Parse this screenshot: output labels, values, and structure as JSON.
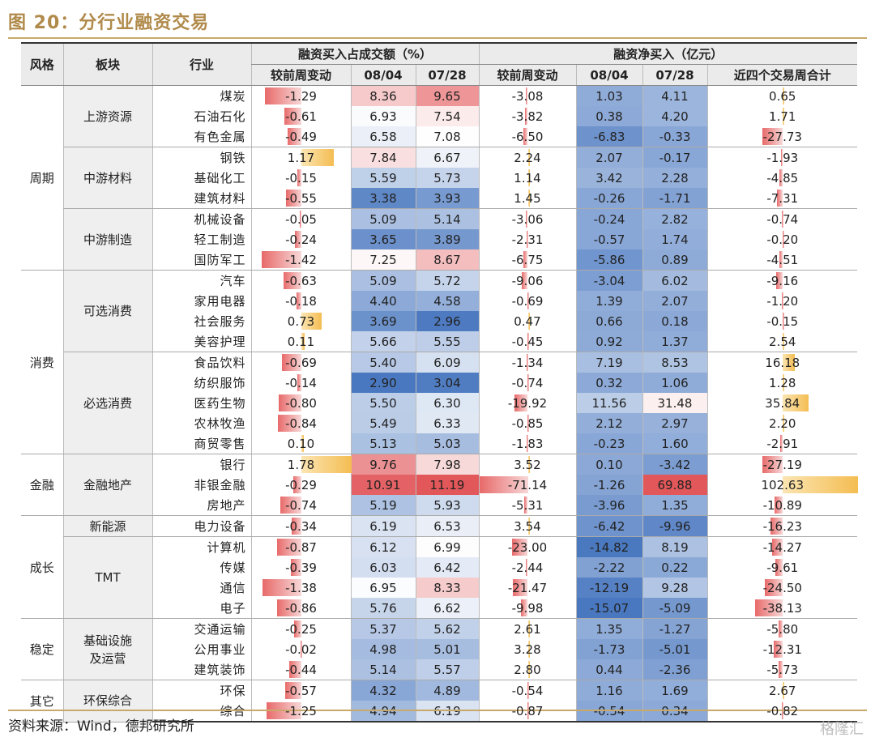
{
  "title": "图 20：分行业融资交易",
  "source": "资料来源：Wind，德邦研究所",
  "watermark": "格隆汇",
  "headers": {
    "style": "风格",
    "sector": "板块",
    "industry": "行业",
    "group1": "融资买入占成交额（%）",
    "group2": "融资净买入（亿元）",
    "wow": "较前周变动",
    "d1": "08/04",
    "d2": "07/28",
    "sum4": "近四个交易周合计"
  },
  "colors": {
    "neg_bar": "#e86a6a",
    "pos_bar": "#f4bd52",
    "heat_high": "#e2575a",
    "heat_low": "#4a78c0",
    "accent": "#b08a4a"
  },
  "rows": [
    {
      "style": "周期",
      "style_span": 9,
      "sector": "上游资源",
      "sector_span": 3,
      "industry": "煤炭",
      "a": "-1.29",
      "b": "8.36",
      "c": "9.65",
      "d": "-3.08",
      "e": "1.03",
      "f": "4.11",
      "g": "0.65"
    },
    {
      "industry": "石油石化",
      "a": "-0.61",
      "b": "6.93",
      "c": "7.54",
      "d": "-3.82",
      "e": "0.38",
      "f": "4.20",
      "g": "1.71"
    },
    {
      "industry": "有色金属",
      "a": "-0.49",
      "b": "6.58",
      "c": "7.08",
      "d": "-6.50",
      "e": "-6.83",
      "f": "-0.33",
      "g": "-27.73"
    },
    {
      "sector": "中游材料",
      "sector_span": 3,
      "industry": "钢铁",
      "a": "1.17",
      "b": "7.84",
      "c": "6.67",
      "d": "2.24",
      "e": "2.07",
      "f": "-0.17",
      "g": "-1.93"
    },
    {
      "industry": "基础化工",
      "a": "-0.15",
      "b": "5.59",
      "c": "5.73",
      "d": "1.14",
      "e": "3.42",
      "f": "2.28",
      "g": "-4.85"
    },
    {
      "industry": "建筑材料",
      "a": "-0.55",
      "b": "3.38",
      "c": "3.93",
      "d": "1.45",
      "e": "-0.26",
      "f": "-1.71",
      "g": "-7.31"
    },
    {
      "sector": "中游制造",
      "sector_span": 3,
      "industry": "机械设备",
      "a": "-0.05",
      "b": "5.09",
      "c": "5.14",
      "d": "-3.06",
      "e": "-0.24",
      "f": "2.82",
      "g": "-0.74"
    },
    {
      "industry": "轻工制造",
      "a": "-0.24",
      "b": "3.65",
      "c": "3.89",
      "d": "-2.31",
      "e": "-0.57",
      "f": "1.74",
      "g": "-0.20"
    },
    {
      "industry": "国防军工",
      "a": "-1.42",
      "b": "7.25",
      "c": "8.67",
      "d": "-6.75",
      "e": "-5.86",
      "f": "0.89",
      "g": "-4.51"
    },
    {
      "style": "消费",
      "style_span": 9,
      "sector": "可选消费",
      "sector_span": 4,
      "industry": "汽车",
      "a": "-0.63",
      "b": "5.09",
      "c": "5.72",
      "d": "-9.06",
      "e": "-3.04",
      "f": "6.02",
      "g": "-9.16"
    },
    {
      "industry": "家用电器",
      "a": "-0.18",
      "b": "4.40",
      "c": "4.58",
      "d": "-0.69",
      "e": "1.39",
      "f": "2.07",
      "g": "-1.20"
    },
    {
      "industry": "社会服务",
      "a": "0.73",
      "b": "3.69",
      "c": "2.96",
      "d": "0.47",
      "e": "0.66",
      "f": "0.18",
      "g": "-0.15"
    },
    {
      "industry": "美容护理",
      "a": "0.11",
      "b": "5.66",
      "c": "5.55",
      "d": "-0.45",
      "e": "0.92",
      "f": "1.37",
      "g": "2.54"
    },
    {
      "sector": "必选消费",
      "sector_span": 5,
      "industry": "食品饮料",
      "a": "-0.69",
      "b": "5.40",
      "c": "6.09",
      "d": "-1.34",
      "e": "7.19",
      "f": "8.53",
      "g": "16.18"
    },
    {
      "industry": "纺织服饰",
      "a": "-0.14",
      "b": "2.90",
      "c": "3.04",
      "d": "-0.74",
      "e": "0.32",
      "f": "1.06",
      "g": "1.28"
    },
    {
      "industry": "医药生物",
      "a": "-0.80",
      "b": "5.50",
      "c": "6.30",
      "d": "-19.92",
      "e": "11.56",
      "f": "31.48",
      "g": "35.84"
    },
    {
      "industry": "农林牧渔",
      "a": "-0.84",
      "b": "5.49",
      "c": "6.33",
      "d": "-0.85",
      "e": "2.12",
      "f": "2.97",
      "g": "2.20"
    },
    {
      "industry": "商贸零售",
      "a": "0.10",
      "b": "5.13",
      "c": "5.03",
      "d": "-1.83",
      "e": "-0.23",
      "f": "1.60",
      "g": "-2.91"
    },
    {
      "style": "金融",
      "style_span": 3,
      "sector": "金融地产",
      "sector_span": 3,
      "industry": "银行",
      "a": "1.78",
      "b": "9.76",
      "c": "7.98",
      "d": "3.52",
      "e": "0.10",
      "f": "-3.42",
      "g": "-27.19"
    },
    {
      "industry": "非银金融",
      "a": "-0.29",
      "b": "10.91",
      "c": "11.19",
      "d": "-71.14",
      "e": "-1.26",
      "f": "69.88",
      "g": "102.63"
    },
    {
      "industry": "房地产",
      "a": "-0.74",
      "b": "5.19",
      "c": "5.93",
      "d": "-5.31",
      "e": "-3.96",
      "f": "1.35",
      "g": "-10.89"
    },
    {
      "style": "成长",
      "style_span": 5,
      "sector": "新能源",
      "sector_span": 1,
      "industry": "电力设备",
      "a": "-0.34",
      "b": "6.19",
      "c": "6.53",
      "d": "3.54",
      "e": "-6.42",
      "f": "-9.96",
      "g": "-16.23"
    },
    {
      "sector": "TMT",
      "sector_span": 4,
      "industry": "计算机",
      "a": "-0.87",
      "b": "6.12",
      "c": "6.99",
      "d": "-23.00",
      "e": "-14.82",
      "f": "8.19",
      "g": "-14.27"
    },
    {
      "industry": "传媒",
      "a": "-0.39",
      "b": "6.03",
      "c": "6.42",
      "d": "-2.44",
      "e": "-2.22",
      "f": "0.22",
      "g": "-9.61"
    },
    {
      "industry": "通信",
      "a": "-1.38",
      "b": "6.95",
      "c": "8.33",
      "d": "-21.47",
      "e": "-12.19",
      "f": "9.28",
      "g": "-24.50"
    },
    {
      "industry": "电子",
      "a": "-0.86",
      "b": "5.76",
      "c": "6.62",
      "d": "-9.98",
      "e": "-15.07",
      "f": "-5.09",
      "g": "-38.13"
    },
    {
      "style": "稳定",
      "style_span": 3,
      "sector": "基础设施\n及运营",
      "sector_span": 3,
      "industry": "交通运输",
      "a": "-0.25",
      "b": "5.37",
      "c": "5.62",
      "d": "2.61",
      "e": "1.35",
      "f": "-1.27",
      "g": "-5.80"
    },
    {
      "industry": "公用事业",
      "a": "-0.02",
      "b": "4.98",
      "c": "5.01",
      "d": "3.28",
      "e": "-1.73",
      "f": "-5.01",
      "g": "-12.31"
    },
    {
      "industry": "建筑装饰",
      "a": "-0.44",
      "b": "5.14",
      "c": "5.57",
      "d": "2.80",
      "e": "0.44",
      "f": "-2.36",
      "g": "-5.73"
    },
    {
      "style": "其它",
      "style_span": 2,
      "sector": "环保综合",
      "sector_span": 2,
      "industry": "环保",
      "a": "-0.57",
      "b": "4.32",
      "c": "4.89",
      "d": "-0.54",
      "e": "1.16",
      "f": "1.69",
      "g": "2.67"
    },
    {
      "industry": "综合",
      "a": "-1.25",
      "b": "4.94",
      "c": "6.19",
      "d": "-0.87",
      "e": "-0.54",
      "f": "0.34",
      "g": "-0.82"
    }
  ]
}
